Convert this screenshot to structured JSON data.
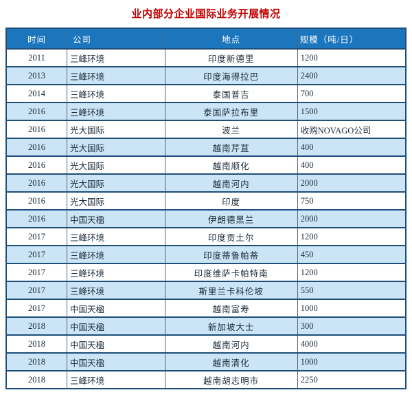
{
  "title": "业内部分企业国际业务开展情况",
  "table": {
    "headers": [
      "时间",
      "公司",
      "地点",
      "规模（吨/日）"
    ],
    "rows": [
      [
        "2011",
        "三峰环境",
        "印度新德里",
        "1200"
      ],
      [
        "2013",
        "三峰环境",
        "印度海得拉巴",
        "2400"
      ],
      [
        "2014",
        "三峰环境",
        "泰国普吉",
        "700"
      ],
      [
        "2016",
        "三峰环境",
        "泰国萨拉布里",
        "1500"
      ],
      [
        "2016",
        "光大国际",
        "波兰",
        "收购NOVAGO公司"
      ],
      [
        "2016",
        "光大国际",
        "越南芹苴",
        "400"
      ],
      [
        "2016",
        "光大国际",
        "越南顺化",
        "400"
      ],
      [
        "2016",
        "光大国际",
        "越南河内",
        "2000"
      ],
      [
        "2016",
        "光大国际",
        "印度",
        "750"
      ],
      [
        "2016",
        "中国天楹",
        "伊朗德黑兰",
        "2000"
      ],
      [
        "2017",
        "三峰环境",
        "印度贡土尔",
        "1200"
      ],
      [
        "2017",
        "三峰环境",
        "印度蒂鲁帕蒂",
        "450"
      ],
      [
        "2017",
        "三峰环境",
        "印度维萨卡帕特南",
        "1200"
      ],
      [
        "2017",
        "三峰环境",
        "斯里兰卡科伦坡",
        "550"
      ],
      [
        "2017",
        "中国天楹",
        "越南富寿",
        "1000"
      ],
      [
        "2018",
        "中国天楹",
        "新加坡大士",
        "300"
      ],
      [
        "2018",
        "中国天楹",
        "越南河内",
        "4000"
      ],
      [
        "2018",
        "中国天楹",
        "越南清化",
        "1000"
      ],
      [
        "2018",
        "三峰环境",
        "越南胡志明市",
        "2250"
      ]
    ]
  },
  "colors": {
    "header_bg": "#1b76bd",
    "header_text": "#fdfeff",
    "alt_row_bg": "#cbe5f6",
    "row_border": "#1f4e79",
    "col_border": "#55636f",
    "cell_text": "#1c2b3a",
    "title_color": "#c00000"
  }
}
